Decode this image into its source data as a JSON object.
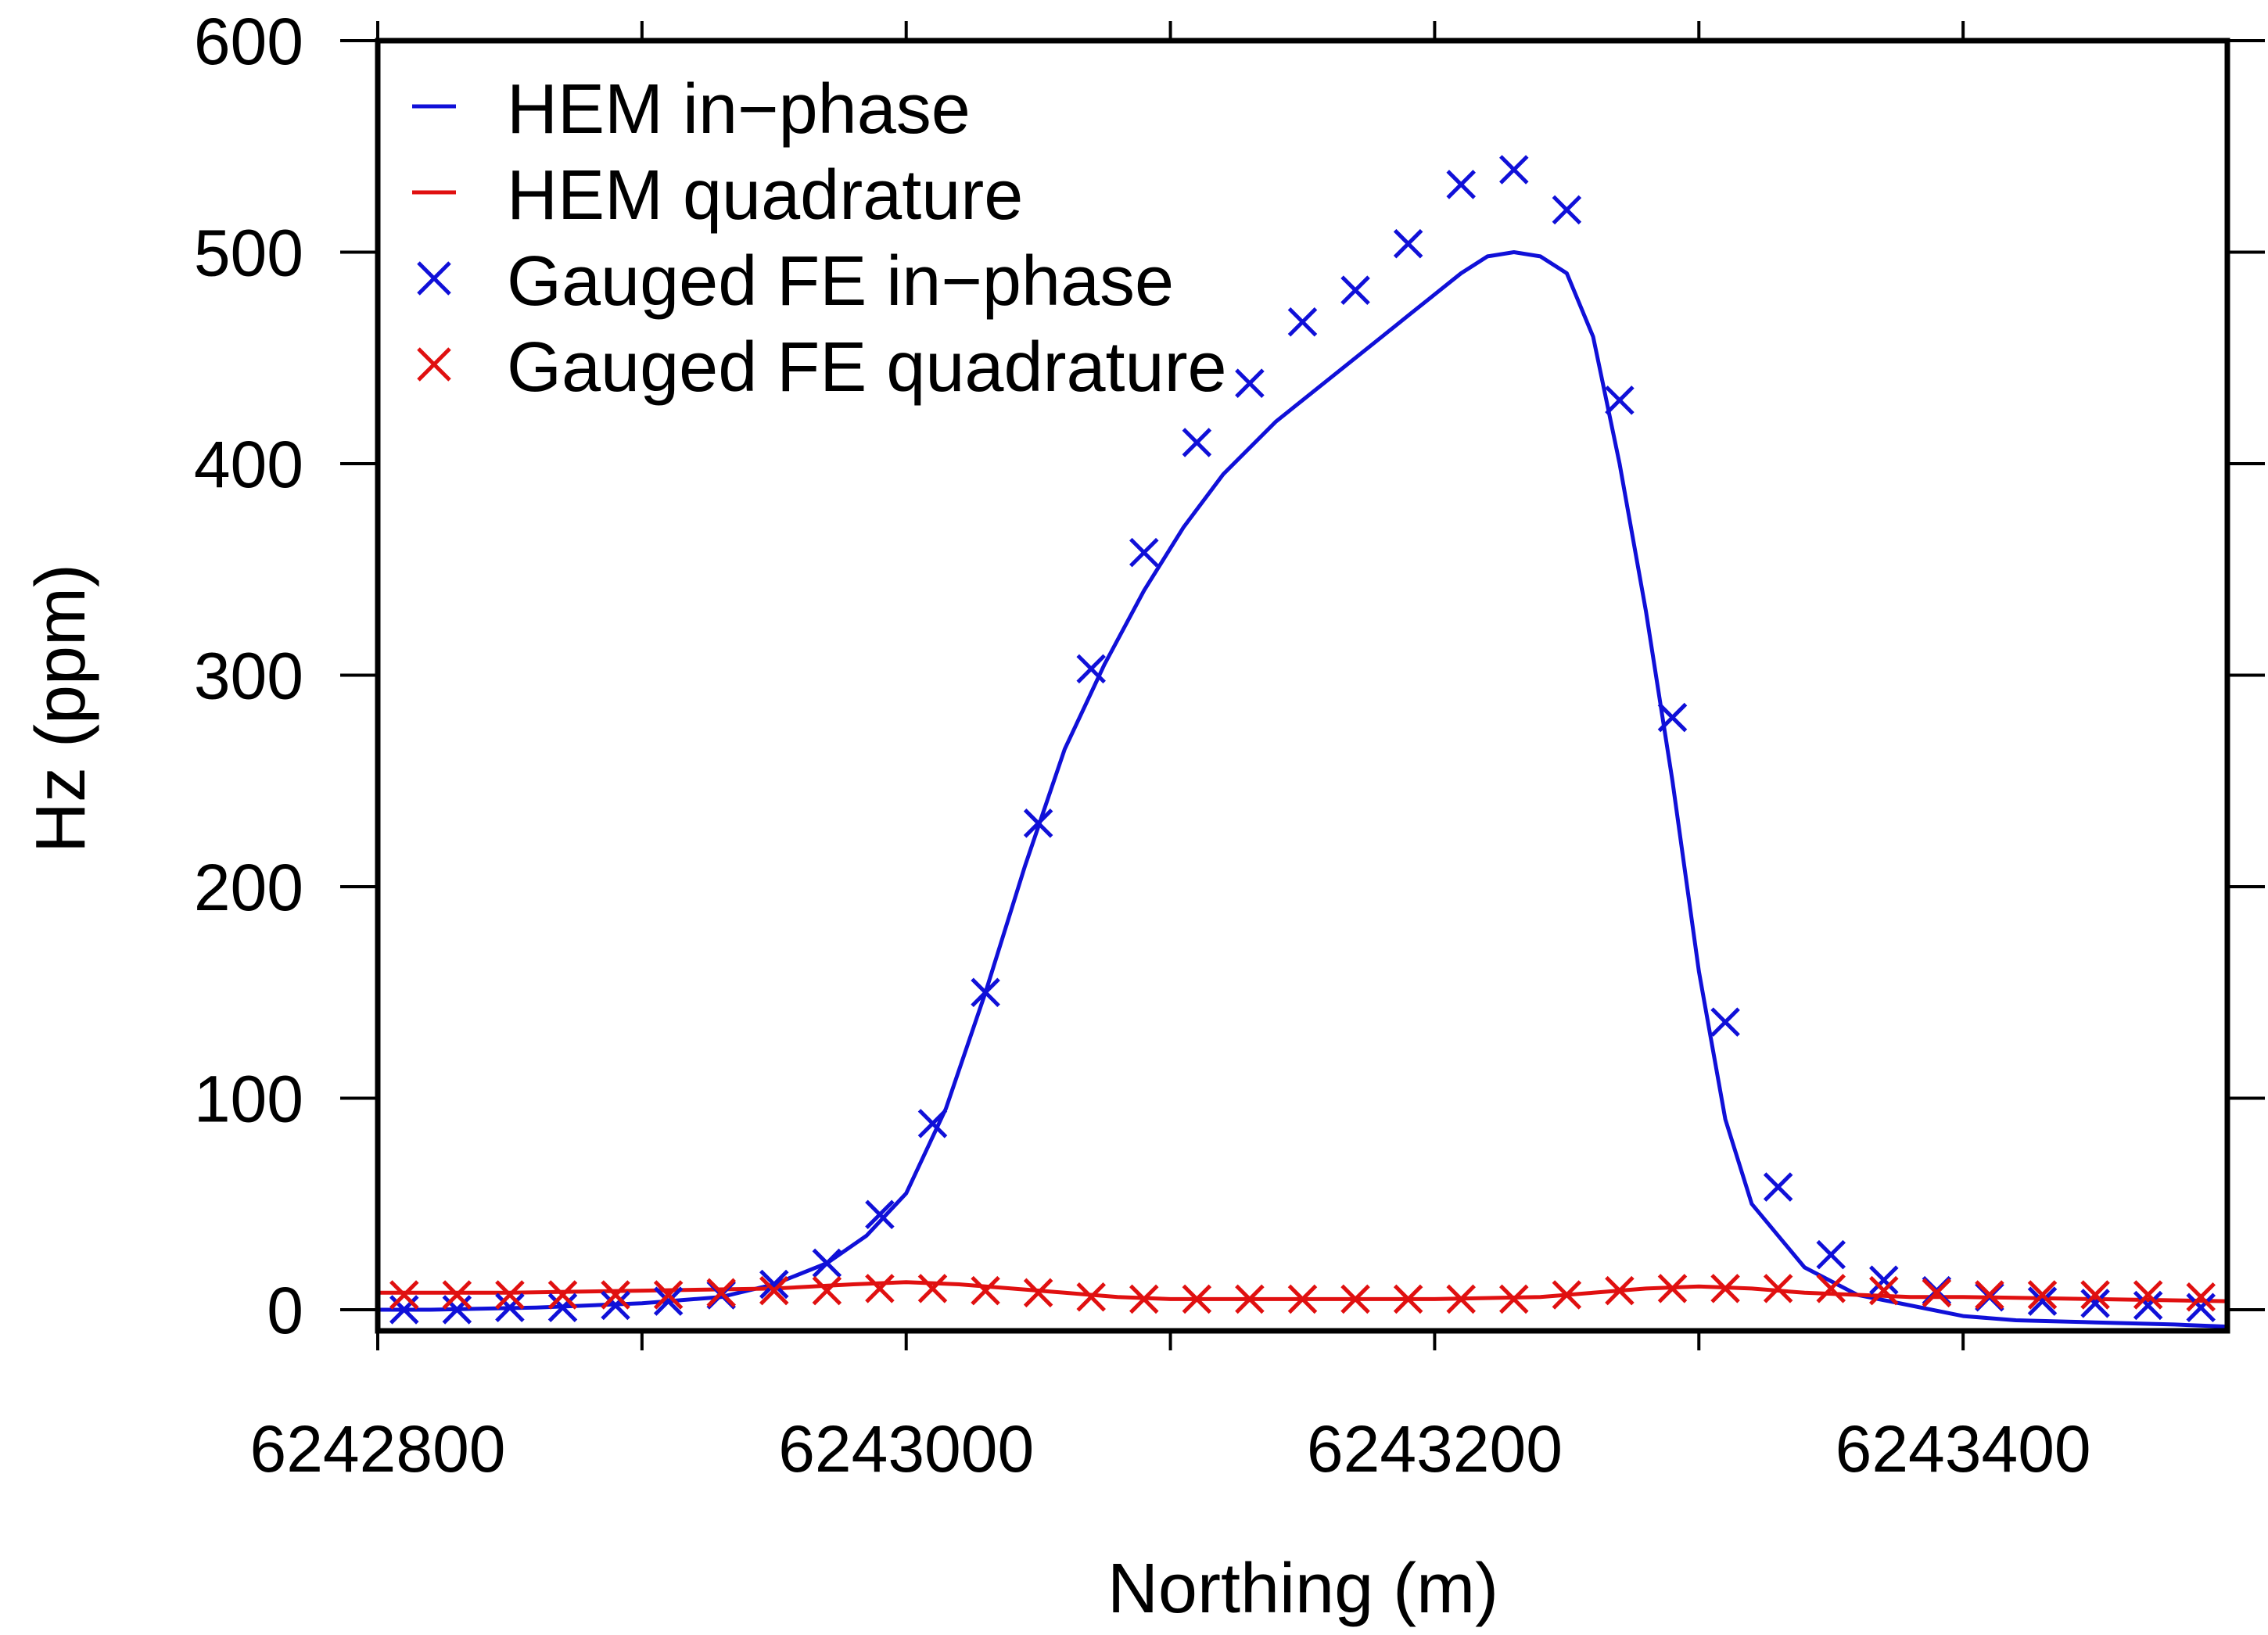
{
  "chart_data": {
    "type": "line",
    "title": "",
    "xlabel": "Northing (m)",
    "ylabel": "Hz (ppm)",
    "xlim": [
      6242800,
      6243500
    ],
    "ylim": [
      -10,
      600
    ],
    "x_ticks": [
      6242800,
      6243000,
      6243200,
      6243400
    ],
    "x_tick_labels": [
      "6242800",
      "6243000",
      "6243200",
      "6243400"
    ],
    "x_minor_ticks": [
      6242900,
      6243100,
      6243300
    ],
    "y_ticks": [
      0,
      100,
      200,
      300,
      400,
      500,
      600
    ],
    "y_tick_labels": [
      "0",
      "100",
      "200",
      "300",
      "400",
      "500",
      "600"
    ],
    "grid": false,
    "legend_position": "top-left",
    "colors": {
      "in_phase": "#1010d8",
      "quadrature": "#e01010"
    },
    "series": [
      {
        "name": "HEM in−phase",
        "style": "line",
        "color": "#1010d8",
        "x": [
          6242800,
          6242820,
          6242860,
          6242900,
          6242930,
          6242950,
          6242970,
          6242985,
          6243000,
          6243015,
          6243030,
          6243045,
          6243060,
          6243075,
          6243090,
          6243105,
          6243120,
          6243140,
          6243160,
          6243180,
          6243190,
          6243200,
          6243210,
          6243220,
          6243230,
          6243240,
          6243250,
          6243260,
          6243270,
          6243280,
          6243290,
          6243300,
          6243310,
          6243320,
          6243340,
          6243360,
          6243380,
          6243400,
          6243420,
          6243450,
          6243480,
          6243500
        ],
        "y": [
          0,
          0,
          1,
          3,
          6,
          12,
          22,
          35,
          55,
          95,
          150,
          210,
          265,
          305,
          340,
          370,
          395,
          420,
          440,
          460,
          470,
          480,
          490,
          498,
          500,
          498,
          490,
          460,
          400,
          330,
          250,
          160,
          90,
          50,
          20,
          7,
          2,
          -3,
          -5,
          -6,
          -7,
          -8
        ]
      },
      {
        "name": "HEM quadrature",
        "style": "line",
        "color": "#e01010",
        "x": [
          6242800,
          6242850,
          6242900,
          6242950,
          6242980,
          6243000,
          6243020,
          6243040,
          6243060,
          6243080,
          6243100,
          6243150,
          6243200,
          6243240,
          6243260,
          6243280,
          6243300,
          6243320,
          6243340,
          6243360,
          6243380,
          6243400,
          6243450,
          6243500
        ],
        "y": [
          8,
          8,
          9,
          10,
          12,
          13,
          12,
          10,
          8,
          6,
          5,
          5,
          5,
          6,
          8,
          10,
          11,
          10,
          8,
          7,
          6,
          6,
          5,
          4
        ]
      },
      {
        "name": "Gauged FE in−phase",
        "style": "markers",
        "marker": "x",
        "color": "#1010d8",
        "x": [
          6242810,
          6242830,
          6242850,
          6242870,
          6242890,
          6242910,
          6242930,
          6242950,
          6242970,
          6242990,
          6243010,
          6243030,
          6243050,
          6243070,
          6243090,
          6243110,
          6243130,
          6243150,
          6243170,
          6243190,
          6243210,
          6243230,
          6243250,
          6243270,
          6243290,
          6243310,
          6243330,
          6243350,
          6243370,
          6243390,
          6243410,
          6243430,
          6243450,
          6243470,
          6243490
        ],
        "y": [
          0,
          0,
          1,
          1,
          2,
          4,
          7,
          12,
          22,
          45,
          88,
          150,
          230,
          303,
          358,
          410,
          438,
          467,
          482,
          504,
          532,
          539,
          520,
          430,
          280,
          136,
          58,
          26,
          14,
          9,
          6,
          4,
          3,
          2,
          1
        ]
      },
      {
        "name": "Gauged FE quadrature",
        "style": "markers",
        "marker": "x",
        "color": "#e01010",
        "x": [
          6242810,
          6242830,
          6242850,
          6242870,
          6242890,
          6242910,
          6242930,
          6242950,
          6242970,
          6242990,
          6243010,
          6243030,
          6243050,
          6243070,
          6243090,
          6243110,
          6243130,
          6243150,
          6243170,
          6243190,
          6243210,
          6243230,
          6243250,
          6243270,
          6243290,
          6243310,
          6243330,
          6243350,
          6243370,
          6243390,
          6243410,
          6243430,
          6243450,
          6243470,
          6243490
        ],
        "y": [
          7,
          7,
          7,
          7,
          7,
          7,
          8,
          9,
          9,
          10,
          10,
          9,
          8,
          6,
          5,
          5,
          5,
          5,
          5,
          5,
          5,
          5,
          7,
          9,
          10,
          10,
          10,
          10,
          9,
          8,
          7,
          7,
          7,
          7,
          6
        ]
      }
    ]
  }
}
